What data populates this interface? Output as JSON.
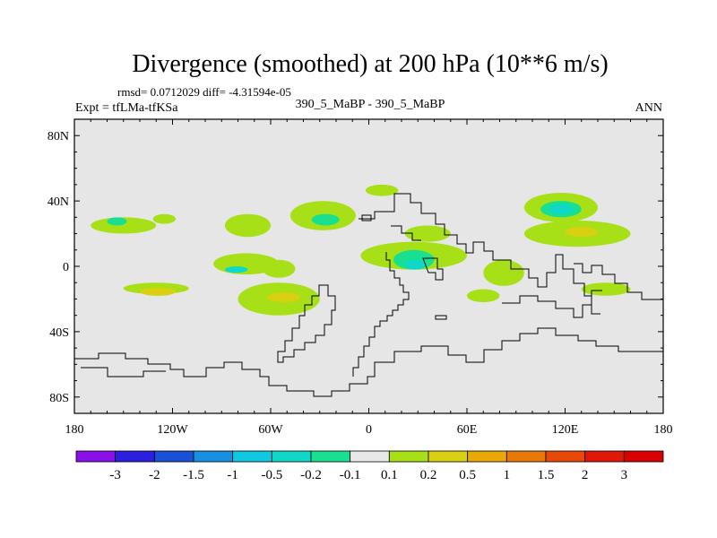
{
  "chart_data": {
    "type": "heatmap",
    "title": "Divergence (smoothed) at 200 hPa (10**6 m/s)",
    "stats_text": "rmsd= 0.0712029 diff= -4.31594e-05",
    "experiment_label": "Expt = tfLMa-tfKSa",
    "case_label": "390_5_MaBP - 390_5_MaBP",
    "season_label": "ANN",
    "xlim": [
      -180,
      180
    ],
    "ylim": [
      -90,
      90
    ],
    "x_ticks": [
      {
        "value": -180,
        "label": "180"
      },
      {
        "value": -120,
        "label": "120W"
      },
      {
        "value": -60,
        "label": "60W"
      },
      {
        "value": 0,
        "label": "0"
      },
      {
        "value": 60,
        "label": "60E"
      },
      {
        "value": 120,
        "label": "120E"
      },
      {
        "value": 180,
        "label": "180"
      }
    ],
    "y_ticks": [
      {
        "value": 80,
        "label": "80N"
      },
      {
        "value": 40,
        "label": "40N"
      },
      {
        "value": 0,
        "label": "0"
      },
      {
        "value": -40,
        "label": "40S"
      },
      {
        "value": -80,
        "label": "80S"
      }
    ],
    "colorbar": {
      "levels": [
        "-3",
        "-2",
        "-1.5",
        "-1",
        "-0.5",
        "-0.2",
        "-0.1",
        "0.1",
        "0.2",
        "0.5",
        "1",
        "1.5",
        "2",
        "3"
      ],
      "colors": [
        "#8a10e8",
        "#2c20e0",
        "#1a50d8",
        "#1890e0",
        "#10c8e0",
        "#10d8c8",
        "#18e090",
        "#e8e8e8",
        "#a8e018",
        "#d8d010",
        "#e8a808",
        "#e87808",
        "#e84808",
        "#e01808",
        "#d80000"
      ]
    },
    "regions": [
      {
        "lon": [
          -170,
          -130
        ],
        "lat": [
          20,
          30
        ],
        "level": "0.1"
      },
      {
        "lon": [
          -160,
          -148
        ],
        "lat": [
          25,
          30
        ],
        "level": "-0.1"
      },
      {
        "lon": [
          -132,
          -118
        ],
        "lat": [
          26,
          32
        ],
        "level": "0.1"
      },
      {
        "lon": [
          -88,
          -60
        ],
        "lat": [
          18,
          32
        ],
        "level": "0.1"
      },
      {
        "lon": [
          -48,
          -8
        ],
        "lat": [
          22,
          40
        ],
        "level": "0.1"
      },
      {
        "lon": [
          -35,
          -18
        ],
        "lat": [
          25,
          32
        ],
        "level": "-0.1"
      },
      {
        "lon": [
          -2,
          18
        ],
        "lat": [
          43,
          50
        ],
        "level": "0.1"
      },
      {
        "lon": [
          -150,
          -110
        ],
        "lat": [
          -17,
          -10
        ],
        "level": "0.1"
      },
      {
        "lon": [
          -140,
          -118
        ],
        "lat": [
          -18,
          -13
        ],
        "level": "0.2"
      },
      {
        "lon": [
          -95,
          -55
        ],
        "lat": [
          -5,
          8
        ],
        "level": "0.1"
      },
      {
        "lon": [
          -88,
          -74
        ],
        "lat": [
          -4,
          0
        ],
        "level": "-0.2"
      },
      {
        "lon": [
          -65,
          -45
        ],
        "lat": [
          -7,
          4
        ],
        "level": "0.1"
      },
      {
        "lon": [
          -80,
          -30
        ],
        "lat": [
          -30,
          -10
        ],
        "level": "0.1"
      },
      {
        "lon": [
          -62,
          -42
        ],
        "lat": [
          -22,
          -16
        ],
        "level": "0.2"
      },
      {
        "lon": [
          -5,
          60
        ],
        "lat": [
          -2,
          15
        ],
        "level": "0.1"
      },
      {
        "lon": [
          15,
          40
        ],
        "lat": [
          -2,
          10
        ],
        "level": "-0.1"
      },
      {
        "lon": [
          22,
          35
        ],
        "lat": [
          -2,
          4
        ],
        "level": "-0.2"
      },
      {
        "lon": [
          22,
          50
        ],
        "lat": [
          15,
          25
        ],
        "level": "0.1"
      },
      {
        "lon": [
          95,
          140
        ],
        "lat": [
          27,
          45
        ],
        "level": "0.1"
      },
      {
        "lon": [
          105,
          130
        ],
        "lat": [
          30,
          40
        ],
        "level": "-0.1"
      },
      {
        "lon": [
          110,
          125
        ],
        "lat": [
          32,
          38
        ],
        "level": "-0.2"
      },
      {
        "lon": [
          95,
          160
        ],
        "lat": [
          12,
          28
        ],
        "level": "0.1"
      },
      {
        "lon": [
          120,
          140
        ],
        "lat": [
          18,
          24
        ],
        "level": "0.2"
      },
      {
        "lon": [
          70,
          95
        ],
        "lat": [
          -12,
          4
        ],
        "level": "0.1"
      },
      {
        "lon": [
          60,
          80
        ],
        "lat": [
          -22,
          -14
        ],
        "level": "0.1"
      },
      {
        "lon": [
          130,
          160
        ],
        "lat": [
          -18,
          -10
        ],
        "level": "0.1"
      }
    ]
  }
}
